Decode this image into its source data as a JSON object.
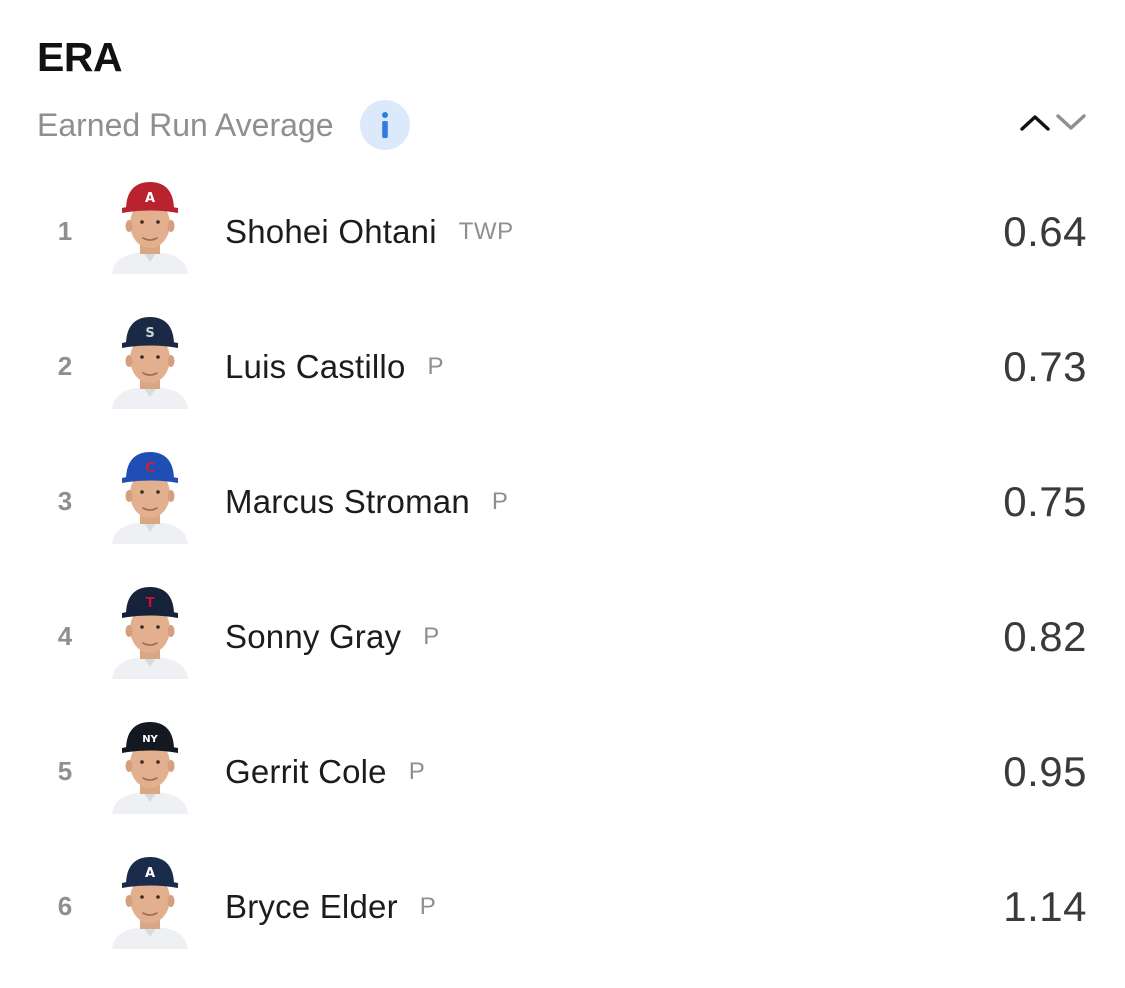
{
  "header": {
    "title": "ERA",
    "subtitle": "Earned Run Average",
    "info_icon": "info-icon",
    "sort_up_icon": "chevron-up-icon",
    "sort_down_icon": "chevron-down-icon"
  },
  "colors": {
    "info_bg": "#dce9fb",
    "info_glyph": "#2f7de1",
    "secondary_text": "#8e8e93"
  },
  "players": [
    {
      "rank": "1",
      "name": "Shohei Ohtani",
      "position": "TWP",
      "value": "0.64",
      "cap_color": "#b8232f",
      "cap_logo": "A",
      "logo_color": "#ffffff"
    },
    {
      "rank": "2",
      "name": "Luis Castillo",
      "position": "P",
      "value": "0.73",
      "cap_color": "#1b2a44",
      "cap_logo": "S",
      "logo_color": "#c9d3d8"
    },
    {
      "rank": "3",
      "name": "Marcus Stroman",
      "position": "P",
      "value": "0.75",
      "cap_color": "#1f4fb5",
      "cap_logo": "C",
      "logo_color": "#d0202e"
    },
    {
      "rank": "4",
      "name": "Sonny Gray",
      "position": "P",
      "value": "0.82",
      "cap_color": "#16213a",
      "cap_logo": "T",
      "logo_color": "#c8102e"
    },
    {
      "rank": "5",
      "name": "Gerrit Cole",
      "position": "P",
      "value": "0.95",
      "cap_color": "#141820",
      "cap_logo": "NY",
      "logo_color": "#ffffff"
    },
    {
      "rank": "6",
      "name": "Bryce Elder",
      "position": "P",
      "value": "1.14",
      "cap_color": "#1a2b4c",
      "cap_logo": "A",
      "logo_color": "#ffffff"
    }
  ]
}
